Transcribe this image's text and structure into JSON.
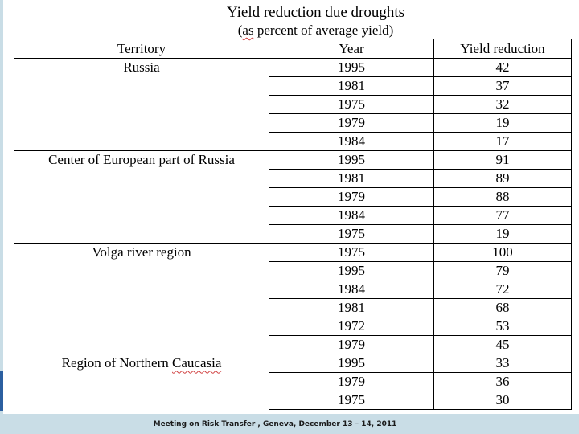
{
  "title": "Yield reduction due droughts",
  "subtitle_pre": "(",
  "subtitle_squiggle": "as",
  "subtitle_post": " percent of average yield)",
  "headers": [
    "Territory",
    "Year",
    "Yield reduction"
  ],
  "rows": [
    {
      "territory": "Russia",
      "year": "1995",
      "reduction": "42"
    },
    {
      "territory": "",
      "year": "1981",
      "reduction": "37"
    },
    {
      "territory": "",
      "year": "1975",
      "reduction": "32"
    },
    {
      "territory": "",
      "year": "1979",
      "reduction": "19"
    },
    {
      "territory": "",
      "year": "1984",
      "reduction": "17"
    },
    {
      "territory": "Center of European part of Russia",
      "year": "1995",
      "reduction": "91"
    },
    {
      "territory": "",
      "year": "1981",
      "reduction": "89"
    },
    {
      "territory": "",
      "year": "1979",
      "reduction": "88"
    },
    {
      "territory": "",
      "year": "1984",
      "reduction": "77"
    },
    {
      "territory": "",
      "year": "1975",
      "reduction": "19"
    },
    {
      "territory": "Volga river region",
      "year": "1975",
      "reduction": "100"
    },
    {
      "territory": "",
      "year": "1995",
      "reduction": "79"
    },
    {
      "territory": "",
      "year": "1984",
      "reduction": "72"
    },
    {
      "territory": "",
      "year": "1981",
      "reduction": "68"
    },
    {
      "territory": "",
      "year": "1972",
      "reduction": "53"
    },
    {
      "territory": "",
      "year": "1979",
      "reduction": "45"
    },
    {
      "territory": "Region of Northern Caucasia",
      "year": "1995",
      "reduction": "33"
    },
    {
      "territory": "",
      "year": "1979",
      "reduction": "36"
    },
    {
      "territory": "",
      "year": "1975",
      "reduction": "30"
    }
  ],
  "footer": "Meeting on Risk Transfer , Geneva, December 13 – 14, 2011"
}
